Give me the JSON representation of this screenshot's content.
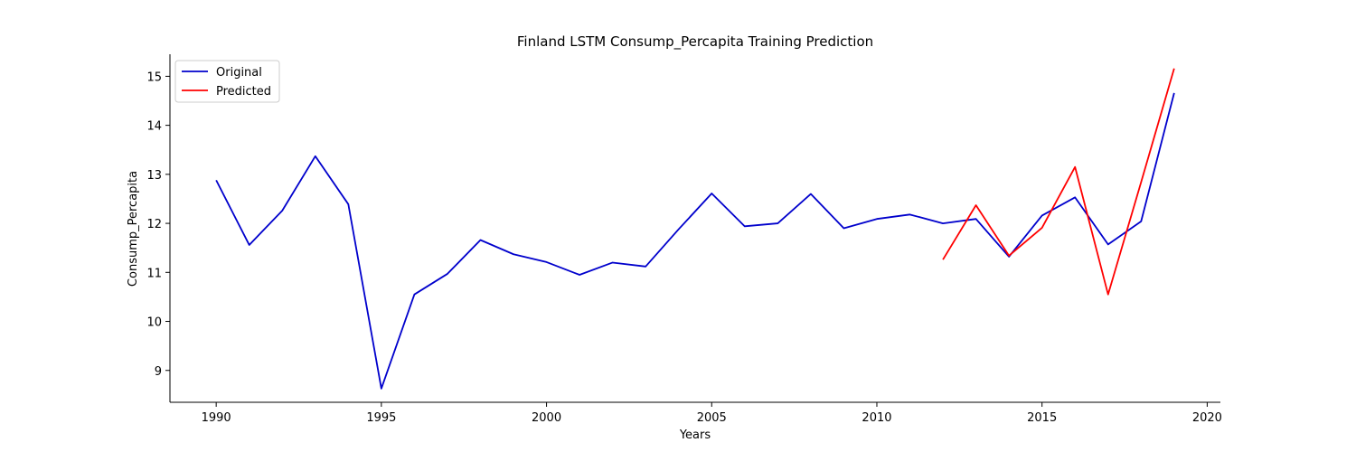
{
  "chart_data": {
    "type": "line",
    "title": "Finland LSTM Consump_Percapita Training Prediction",
    "xlabel": "Years",
    "ylabel": "Consump_Percapita",
    "xlim": [
      1988.6,
      2020.4
    ],
    "ylim": [
      8.35,
      15.45
    ],
    "xticks": [
      1990,
      1995,
      2000,
      2005,
      2010,
      2015,
      2020
    ],
    "yticks": [
      9,
      10,
      11,
      12,
      13,
      14,
      15
    ],
    "legend_position": "top-left",
    "grid": false,
    "series": [
      {
        "name": "Original",
        "color": "#0000cc",
        "x": [
          1990,
          1991,
          1992,
          1993,
          1994,
          1995,
          1996,
          1997,
          1998,
          1999,
          2000,
          2001,
          2002,
          2003,
          2004,
          2005,
          2006,
          2007,
          2008,
          2009,
          2010,
          2011,
          2012,
          2013,
          2014,
          2015,
          2016,
          2017,
          2018,
          2019
        ],
        "y": [
          12.88,
          11.56,
          12.26,
          13.37,
          12.39,
          8.63,
          10.55,
          10.97,
          11.66,
          11.37,
          11.21,
          10.95,
          11.2,
          11.12,
          11.88,
          12.61,
          11.94,
          12.0,
          12.6,
          11.9,
          12.09,
          12.18,
          12.0,
          12.09,
          11.32,
          12.16,
          12.53,
          11.57,
          12.04,
          14.66
        ]
      },
      {
        "name": "Predicted",
        "color": "#ff0000",
        "x": [
          2012,
          2013,
          2014,
          2015,
          2016,
          2017,
          2018,
          2019
        ],
        "y": [
          11.26,
          12.37,
          11.34,
          11.91,
          13.15,
          10.55,
          12.84,
          15.16
        ]
      }
    ]
  }
}
